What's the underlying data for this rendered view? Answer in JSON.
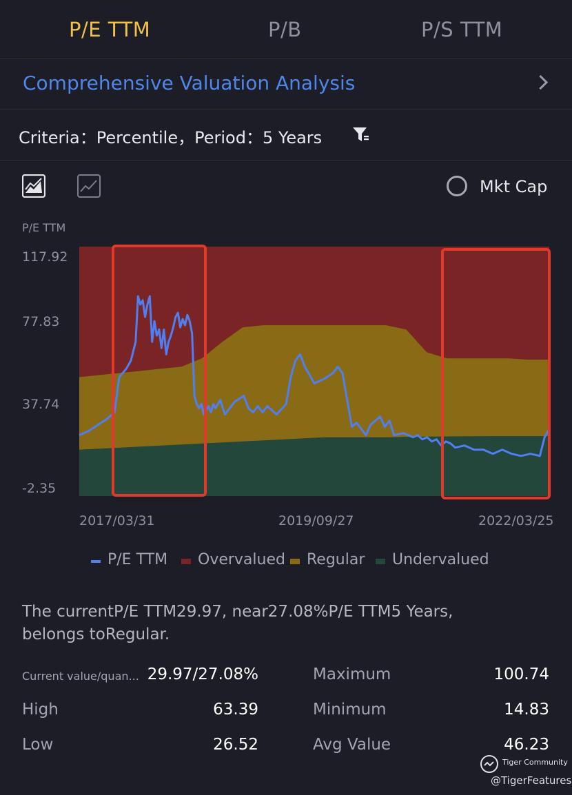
{
  "tabs": [
    {
      "label": "P/E TTM",
      "active": true
    },
    {
      "label": "P/B",
      "active": false
    },
    {
      "label": "P/S TTM",
      "active": false
    }
  ],
  "analysis": {
    "title": "Comprehensive Valuation Analysis",
    "icon": "chevron-right-icon"
  },
  "criteria": {
    "text": "Criteria：Percentile，Period：5 Years",
    "icon": "filter-icon"
  },
  "toolbar": {
    "mktcap_label": "Mkt Cap"
  },
  "chart_data": {
    "type": "line",
    "ylabel": "P/E TTM",
    "ylim": [
      -2.35,
      117.92
    ],
    "yticks": [
      "117.92",
      "77.83",
      "37.74",
      "-2.35"
    ],
    "xticks": [
      "2017/03/31",
      "2019/09/27",
      "2022/03/25"
    ],
    "highlight_boxes": 2,
    "series": [
      {
        "name": "P/E TTM",
        "color": "#4f7ff0",
        "x": [
          0,
          0.02,
          0.04,
          0.06,
          0.075,
          0.085,
          0.1,
          0.11,
          0.12,
          0.125,
          0.13,
          0.135,
          0.14,
          0.145,
          0.15,
          0.155,
          0.16,
          0.165,
          0.17,
          0.175,
          0.18,
          0.185,
          0.19,
          0.195,
          0.2,
          0.205,
          0.21,
          0.215,
          0.22,
          0.225,
          0.23,
          0.235,
          0.24,
          0.245,
          0.25,
          0.255,
          0.26,
          0.265,
          0.27,
          0.275,
          0.28,
          0.285,
          0.29,
          0.3,
          0.31,
          0.33,
          0.35,
          0.36,
          0.37,
          0.38,
          0.39,
          0.4,
          0.42,
          0.44,
          0.45,
          0.46,
          0.47,
          0.48,
          0.49,
          0.5,
          0.52,
          0.54,
          0.55,
          0.56,
          0.58,
          0.59,
          0.6,
          0.61,
          0.62,
          0.64,
          0.65,
          0.66,
          0.67,
          0.69,
          0.7,
          0.71,
          0.72,
          0.73,
          0.74,
          0.75,
          0.76,
          0.77,
          0.78,
          0.79,
          0.8,
          0.82,
          0.84,
          0.86,
          0.88,
          0.89,
          0.9,
          0.92,
          0.94,
          0.96,
          0.98,
          0.99,
          1.0
        ],
        "y": [
          27,
          29,
          32,
          35,
          38,
          55,
          59,
          63,
          72,
          94,
          90,
          92,
          84,
          90,
          94,
          72,
          82,
          75,
          78,
          69,
          78,
          66,
          72,
          75,
          79,
          84,
          86,
          79,
          83,
          80,
          85,
          82,
          76,
          46,
          42,
          40,
          42,
          37,
          39,
          41,
          38,
          42,
          40,
          44,
          37,
          43,
          46,
          40,
          38,
          41,
          38,
          41,
          37,
          42,
          55,
          63,
          66,
          60,
          56,
          52,
          54,
          57,
          60,
          57,
          31,
          33,
          30,
          27,
          32,
          36,
          31,
          34,
          27,
          28,
          27,
          26,
          27,
          25,
          26,
          24,
          25,
          22,
          24,
          23,
          21,
          22,
          20,
          20,
          18,
          19,
          20,
          18,
          17,
          18,
          17,
          26,
          30
        ]
      }
    ],
    "bands": [
      {
        "name": "Overvalued",
        "color": "#7a2425",
        "upper": 117.92
      },
      {
        "name": "Regular",
        "color": "#8a6b15",
        "upper_series": [
          55,
          56,
          57,
          58,
          59,
          60,
          64,
          72,
          79,
          80,
          80,
          80,
          80,
          80,
          80,
          80,
          78,
          67,
          64,
          64,
          64,
          64,
          63.39,
          63.39
        ]
      },
      {
        "name": "Undervalued",
        "color": "#23473a",
        "upper_series": [
          20,
          20.5,
          21,
          21.5,
          22,
          22.5,
          23,
          23.5,
          24,
          24.5,
          25,
          25.5,
          26,
          26,
          26,
          26,
          26.2,
          26.3,
          26.4,
          26.5,
          26.52,
          26.52,
          26.52,
          26.52
        ]
      }
    ]
  },
  "legend": [
    {
      "label": "P/E TTM",
      "color": "#4f7ff0"
    },
    {
      "label": "Overvalued",
      "color": "#7a2425"
    },
    {
      "label": "Regular",
      "color": "#8a6b15"
    },
    {
      "label": "Undervalued",
      "color": "#23473a"
    }
  ],
  "summary": {
    "line1": "The currentP/E TTM29.97, near27.08%P/E TTM5 Years,",
    "line2": "belongs toRegular."
  },
  "stats": {
    "current_label": "Current value/quan...",
    "current_value": "29.97/27.08%",
    "high_label": "High",
    "high_value": "63.39",
    "low_label": "Low",
    "low_value": "26.52",
    "max_label": "Maximum",
    "max_value": "100.74",
    "min_label": "Minimum",
    "min_value": "14.83",
    "avg_label": "Avg Value",
    "avg_value": "46.23"
  },
  "watermark": {
    "line1": "Tiger Community",
    "line2": "@TigerFeatures"
  }
}
